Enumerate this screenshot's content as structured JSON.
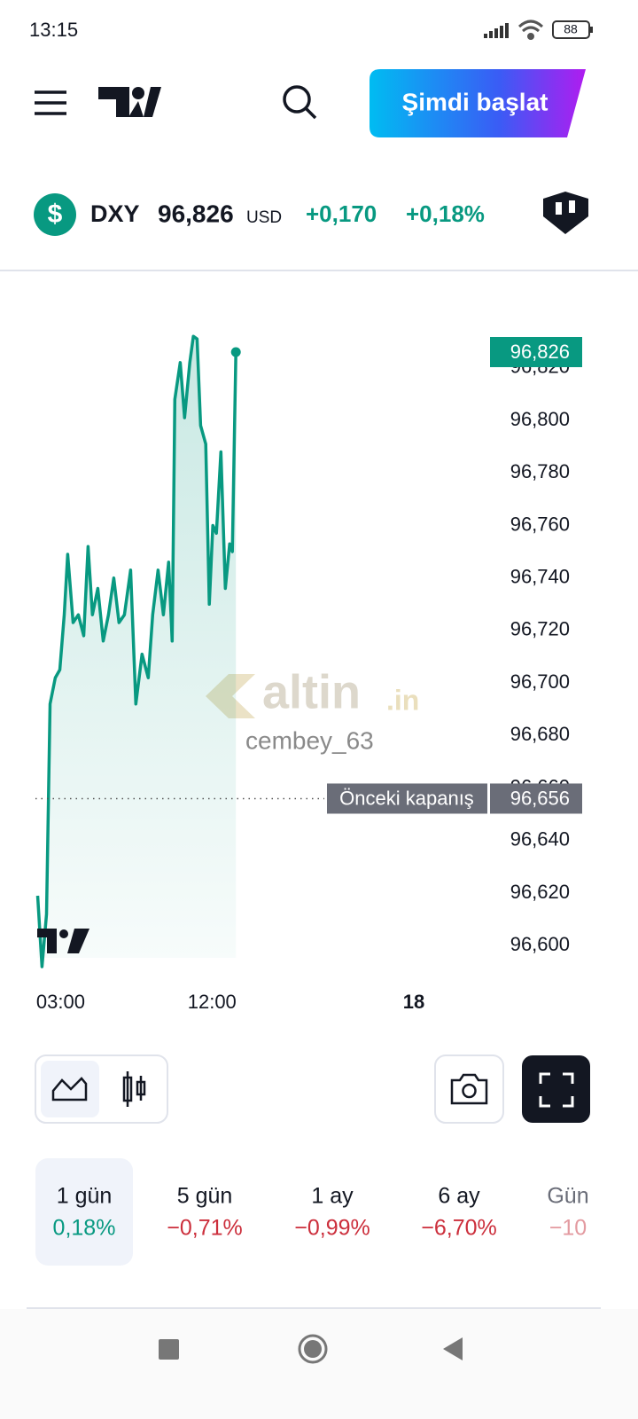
{
  "status_bar": {
    "time": "13:15",
    "battery": "88"
  },
  "header": {
    "button": "Şimdi başlat"
  },
  "ticker": {
    "icon": "$",
    "symbol": "DXY",
    "price": "96,826",
    "currency": "USD",
    "change": "+0,170",
    "change_percent": "+0,18%"
  },
  "chart_data": {
    "type": "line",
    "color": "#089981",
    "x": [
      1.63,
      1.89,
      2.16,
      2.37,
      2.68,
      2.95,
      3.21,
      3.42,
      3.74,
      4.05,
      4.37,
      4.63,
      4.89,
      5.21,
      5.53,
      5.84,
      6.16,
      6.47,
      6.79,
      7.16,
      7.47,
      7.84,
      8.21,
      8.47,
      8.79,
      9.11,
      9.42,
      9.63,
      9.79,
      10.11,
      10.37,
      10.68,
      10.89,
      11.11,
      11.32,
      11.63,
      11.84,
      12.05,
      12.26,
      12.53,
      12.79,
      13.05,
      13.21,
      13.42
    ],
    "values": [
      96.619,
      96.592,
      96.612,
      96.692,
      96.702,
      96.705,
      96.726,
      96.749,
      96.723,
      96.726,
      96.718,
      96.752,
      96.726,
      96.736,
      96.716,
      96.726,
      96.74,
      96.723,
      96.726,
      96.743,
      96.692,
      96.711,
      96.702,
      96.726,
      96.743,
      96.726,
      96.746,
      96.716,
      96.808,
      96.822,
      96.801,
      96.822,
      96.832,
      96.831,
      96.798,
      96.791,
      96.73,
      96.76,
      96.757,
      96.788,
      96.736,
      96.753,
      96.75,
      96.826
    ],
    "xlim": [
      1.5,
      28.9
    ],
    "xticks": [
      {
        "value": 3,
        "label": "03:00"
      },
      {
        "value": 12,
        "label": "12:00"
      },
      {
        "value": 24,
        "label": "18"
      }
    ],
    "ylim": [
      96.592,
      96.852
    ],
    "yticks": [
      {
        "value": 96.6,
        "label": "96,600"
      },
      {
        "value": 96.62,
        "label": "96,620"
      },
      {
        "value": 96.64,
        "label": "96,640"
      },
      {
        "value": 96.66,
        "label": "96,660"
      },
      {
        "value": 96.68,
        "label": "96,680"
      },
      {
        "value": 96.7,
        "label": "96,700"
      },
      {
        "value": 96.72,
        "label": "96,720"
      },
      {
        "value": 96.74,
        "label": "96,740"
      },
      {
        "value": 96.76,
        "label": "96,760"
      },
      {
        "value": 96.78,
        "label": "96,780"
      },
      {
        "value": 96.8,
        "label": "96,800"
      },
      {
        "value": 96.82,
        "label": "96,820"
      }
    ],
    "last_price": {
      "value": 96.826,
      "label": "96,826"
    },
    "reference_line": {
      "name": "Önceki kapanış",
      "value": 96.656,
      "label": "96,656"
    },
    "grid": false
  },
  "watermark": {
    "brand": "altin",
    "tld": ".in",
    "user": "cembey_63"
  },
  "periods": [
    {
      "label": "1 gün",
      "change": "0,18%"
    },
    {
      "label": "5 gün",
      "change": "−0,71%"
    },
    {
      "label": "1 ay",
      "change": "−0,99%"
    },
    {
      "label": "6 ay",
      "change": "−6,70%"
    },
    {
      "label": "Gün",
      "change": "−10"
    }
  ]
}
